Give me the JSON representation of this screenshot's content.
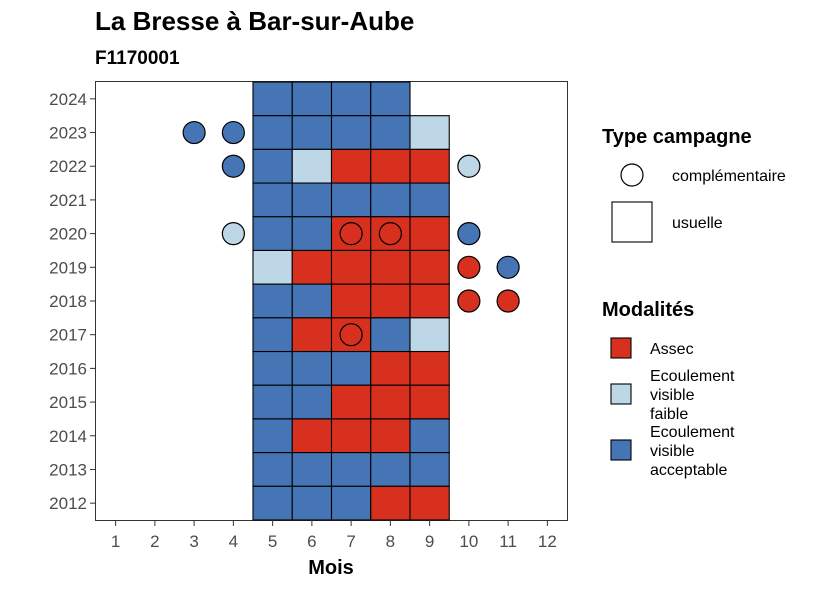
{
  "chart_data": {
    "type": "heatmap",
    "title": "La Bresse à Bar-sur-Aube",
    "subtitle": "F1170001",
    "xlabel": "Mois",
    "ylabel": "",
    "x_ticks": [
      1,
      2,
      3,
      4,
      5,
      6,
      7,
      8,
      9,
      10,
      11,
      12
    ],
    "y_ticks": [
      2012,
      2013,
      2014,
      2015,
      2016,
      2017,
      2018,
      2019,
      2020,
      2021,
      2022,
      2023,
      2024
    ],
    "xlim": [
      0.5,
      12.5
    ],
    "ylim": [
      2011.5,
      2024.5
    ],
    "grid": false,
    "legend_position": "right",
    "colors": {
      "Assec": "#d7301f",
      "Ecoulement visible faible": "#bdd7e7",
      "Ecoulement visible acceptable": "#4575b4"
    },
    "legends": [
      {
        "title": "Type campagne",
        "items": [
          {
            "label": "complémentaire",
            "shape": "circle"
          },
          {
            "label": "usuelle",
            "shape": "square"
          }
        ]
      },
      {
        "title": "Modalités",
        "items": [
          {
            "label": "Assec",
            "lines": [
              "Assec"
            ],
            "color": "#d7301f"
          },
          {
            "label": "Ecoulement visible faible",
            "lines": [
              "Ecoulement",
              "visible",
              "faible"
            ],
            "color": "#bdd7e7"
          },
          {
            "label": "Ecoulement visible acceptable",
            "lines": [
              "Ecoulement",
              "visible",
              "acceptable"
            ],
            "color": "#4575b4"
          }
        ]
      }
    ],
    "series": [
      {
        "name": "usuelle",
        "shape": "square",
        "points": [
          {
            "year": 2024,
            "month": 5,
            "modalite": "Ecoulement visible acceptable"
          },
          {
            "year": 2024,
            "month": 6,
            "modalite": "Ecoulement visible acceptable"
          },
          {
            "year": 2024,
            "month": 7,
            "modalite": "Ecoulement visible acceptable"
          },
          {
            "year": 2024,
            "month": 8,
            "modalite": "Ecoulement visible acceptable"
          },
          {
            "year": 2023,
            "month": 5,
            "modalite": "Ecoulement visible acceptable"
          },
          {
            "year": 2023,
            "month": 6,
            "modalite": "Ecoulement visible acceptable"
          },
          {
            "year": 2023,
            "month": 7,
            "modalite": "Ecoulement visible acceptable"
          },
          {
            "year": 2023,
            "month": 8,
            "modalite": "Ecoulement visible acceptable"
          },
          {
            "year": 2023,
            "month": 9,
            "modalite": "Ecoulement visible faible"
          },
          {
            "year": 2022,
            "month": 5,
            "modalite": "Ecoulement visible acceptable"
          },
          {
            "year": 2022,
            "month": 6,
            "modalite": "Ecoulement visible faible"
          },
          {
            "year": 2022,
            "month": 7,
            "modalite": "Assec"
          },
          {
            "year": 2022,
            "month": 8,
            "modalite": "Assec"
          },
          {
            "year": 2022,
            "month": 9,
            "modalite": "Assec"
          },
          {
            "year": 2021,
            "month": 5,
            "modalite": "Ecoulement visible acceptable"
          },
          {
            "year": 2021,
            "month": 6,
            "modalite": "Ecoulement visible acceptable"
          },
          {
            "year": 2021,
            "month": 7,
            "modalite": "Ecoulement visible acceptable"
          },
          {
            "year": 2021,
            "month": 8,
            "modalite": "Ecoulement visible acceptable"
          },
          {
            "year": 2021,
            "month": 9,
            "modalite": "Ecoulement visible acceptable"
          },
          {
            "year": 2020,
            "month": 5,
            "modalite": "Ecoulement visible acceptable"
          },
          {
            "year": 2020,
            "month": 6,
            "modalite": "Ecoulement visible acceptable"
          },
          {
            "year": 2020,
            "month": 7,
            "modalite": "Assec"
          },
          {
            "year": 2020,
            "month": 8,
            "modalite": "Assec"
          },
          {
            "year": 2020,
            "month": 9,
            "modalite": "Assec"
          },
          {
            "year": 2019,
            "month": 5,
            "modalite": "Ecoulement visible faible"
          },
          {
            "year": 2019,
            "month": 6,
            "modalite": "Assec"
          },
          {
            "year": 2019,
            "month": 7,
            "modalite": "Assec"
          },
          {
            "year": 2019,
            "month": 8,
            "modalite": "Assec"
          },
          {
            "year": 2019,
            "month": 9,
            "modalite": "Assec"
          },
          {
            "year": 2018,
            "month": 5,
            "modalite": "Ecoulement visible acceptable"
          },
          {
            "year": 2018,
            "month": 6,
            "modalite": "Ecoulement visible acceptable"
          },
          {
            "year": 2018,
            "month": 7,
            "modalite": "Assec"
          },
          {
            "year": 2018,
            "month": 8,
            "modalite": "Assec"
          },
          {
            "year": 2018,
            "month": 9,
            "modalite": "Assec"
          },
          {
            "year": 2017,
            "month": 5,
            "modalite": "Ecoulement visible acceptable"
          },
          {
            "year": 2017,
            "month": 6,
            "modalite": "Assec"
          },
          {
            "year": 2017,
            "month": 7,
            "modalite": "Assec"
          },
          {
            "year": 2017,
            "month": 8,
            "modalite": "Ecoulement visible acceptable"
          },
          {
            "year": 2017,
            "month": 9,
            "modalite": "Ecoulement visible faible"
          },
          {
            "year": 2016,
            "month": 5,
            "modalite": "Ecoulement visible acceptable"
          },
          {
            "year": 2016,
            "month": 6,
            "modalite": "Ecoulement visible acceptable"
          },
          {
            "year": 2016,
            "month": 7,
            "modalite": "Ecoulement visible acceptable"
          },
          {
            "year": 2016,
            "month": 8,
            "modalite": "Assec"
          },
          {
            "year": 2016,
            "month": 9,
            "modalite": "Assec"
          },
          {
            "year": 2015,
            "month": 5,
            "modalite": "Ecoulement visible acceptable"
          },
          {
            "year": 2015,
            "month": 6,
            "modalite": "Ecoulement visible acceptable"
          },
          {
            "year": 2015,
            "month": 7,
            "modalite": "Assec"
          },
          {
            "year": 2015,
            "month": 8,
            "modalite": "Assec"
          },
          {
            "year": 2015,
            "month": 9,
            "modalite": "Assec"
          },
          {
            "year": 2014,
            "month": 5,
            "modalite": "Ecoulement visible acceptable"
          },
          {
            "year": 2014,
            "month": 6,
            "modalite": "Assec"
          },
          {
            "year": 2014,
            "month": 7,
            "modalite": "Assec"
          },
          {
            "year": 2014,
            "month": 8,
            "modalite": "Assec"
          },
          {
            "year": 2014,
            "month": 9,
            "modalite": "Ecoulement visible acceptable"
          },
          {
            "year": 2013,
            "month": 5,
            "modalite": "Ecoulement visible acceptable"
          },
          {
            "year": 2013,
            "month": 6,
            "modalite": "Ecoulement visible acceptable"
          },
          {
            "year": 2013,
            "month": 7,
            "modalite": "Ecoulement visible acceptable"
          },
          {
            "year": 2013,
            "month": 8,
            "modalite": "Ecoulement visible acceptable"
          },
          {
            "year": 2013,
            "month": 9,
            "modalite": "Ecoulement visible acceptable"
          },
          {
            "year": 2012,
            "month": 5,
            "modalite": "Ecoulement visible acceptable"
          },
          {
            "year": 2012,
            "month": 6,
            "modalite": "Ecoulement visible acceptable"
          },
          {
            "year": 2012,
            "month": 7,
            "modalite": "Ecoulement visible acceptable"
          },
          {
            "year": 2012,
            "month": 8,
            "modalite": "Assec"
          },
          {
            "year": 2012,
            "month": 9,
            "modalite": "Assec"
          }
        ]
      },
      {
        "name": "complémentaire",
        "shape": "circle",
        "points": [
          {
            "year": 2023,
            "month": 3,
            "modalite": "Ecoulement visible acceptable"
          },
          {
            "year": 2023,
            "month": 4,
            "modalite": "Ecoulement visible acceptable"
          },
          {
            "year": 2022,
            "month": 4,
            "modalite": "Ecoulement visible acceptable"
          },
          {
            "year": 2022,
            "month": 10,
            "modalite": "Ecoulement visible faible"
          },
          {
            "year": 2020,
            "month": 4,
            "modalite": "Ecoulement visible faible"
          },
          {
            "year": 2020,
            "month": 7,
            "modalite": "Assec"
          },
          {
            "year": 2020,
            "month": 8,
            "modalite": "Assec"
          },
          {
            "year": 2020,
            "month": 10,
            "modalite": "Ecoulement visible acceptable"
          },
          {
            "year": 2019,
            "month": 10,
            "modalite": "Assec"
          },
          {
            "year": 2019,
            "month": 11,
            "modalite": "Ecoulement visible acceptable"
          },
          {
            "year": 2018,
            "month": 10,
            "modalite": "Assec"
          },
          {
            "year": 2018,
            "month": 11,
            "modalite": "Assec"
          },
          {
            "year": 2017,
            "month": 7,
            "modalite": "Assec"
          }
        ]
      }
    ]
  }
}
